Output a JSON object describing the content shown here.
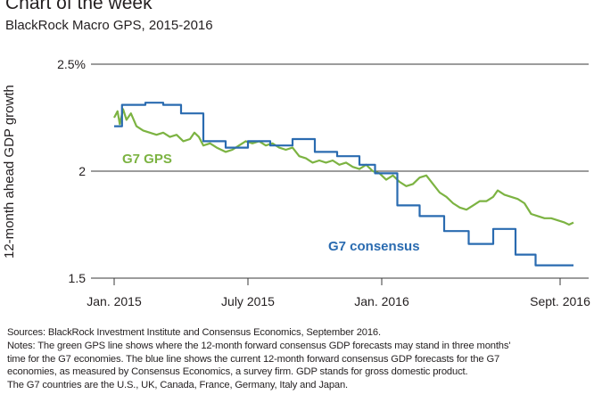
{
  "header": {
    "title": "Chart of the week",
    "subtitle": "BlackRock Macro GPS, 2015-2016"
  },
  "footer": {
    "sources": "Sources: BlackRock Investment Institute and Consensus Economics, September 2016.",
    "notes_line1": "Notes: The green GPS  line shows where the 12-month forward consensus GDP forecasts may stand in three months'",
    "notes_line2": "time for the G7 economies. The blue line shows the current 12-month forward consensus GDP forecasts for the G7",
    "notes_line3": "economies, as measured by Consensus Economics, a survey firm. GDP stands for gross domestic product.",
    "notes_line4": "The G7 countries are the U.S., UK, Canada, France, Germany, Italy and Japan."
  },
  "colors": {
    "gps": "#7cb342",
    "consensus": "#2a6bb0",
    "grid": "#3a3a3a"
  },
  "chart_data": {
    "type": "line",
    "title": "BlackRock Macro GPS, 2015-2016",
    "xlabel": "",
    "ylabel": "12-month ahead GDP growth",
    "ylim": [
      1.5,
      2.5
    ],
    "ytick_labels": [
      "2.5%",
      "2",
      "1.5"
    ],
    "yticks": [
      2.5,
      2.0,
      1.5
    ],
    "xticks": [
      {
        "label": "Jan. 2015",
        "t": 0
      },
      {
        "label": "July 2015",
        "t": 6
      },
      {
        "label": "Jan. 2016",
        "t": 12
      },
      {
        "label": "Sept. 2016",
        "t": 20
      }
    ],
    "x_unit": "months since Jan. 2015",
    "series": [
      {
        "name": "G7 GPS",
        "type": "line",
        "points": [
          [
            0.0,
            2.25
          ],
          [
            0.15,
            2.28
          ],
          [
            0.25,
            2.22
          ],
          [
            0.4,
            2.29
          ],
          [
            0.55,
            2.24
          ],
          [
            0.75,
            2.27
          ],
          [
            1.0,
            2.21
          ],
          [
            1.3,
            2.19
          ],
          [
            1.6,
            2.18
          ],
          [
            1.9,
            2.17
          ],
          [
            2.2,
            2.18
          ],
          [
            2.5,
            2.16
          ],
          [
            2.8,
            2.17
          ],
          [
            3.1,
            2.14
          ],
          [
            3.4,
            2.15
          ],
          [
            3.6,
            2.18
          ],
          [
            3.8,
            2.16
          ],
          [
            4.0,
            2.12
          ],
          [
            4.3,
            2.13
          ],
          [
            4.6,
            2.11
          ],
          [
            5.0,
            2.09
          ],
          [
            5.3,
            2.1
          ],
          [
            5.6,
            2.12
          ],
          [
            5.9,
            2.14
          ],
          [
            6.2,
            2.13
          ],
          [
            6.5,
            2.14
          ],
          [
            6.8,
            2.12
          ],
          [
            7.1,
            2.13
          ],
          [
            7.4,
            2.11
          ],
          [
            7.7,
            2.1
          ],
          [
            8.0,
            2.11
          ],
          [
            8.3,
            2.07
          ],
          [
            8.6,
            2.06
          ],
          [
            8.9,
            2.04
          ],
          [
            9.2,
            2.05
          ],
          [
            9.5,
            2.04
          ],
          [
            9.8,
            2.05
          ],
          [
            10.1,
            2.03
          ],
          [
            10.4,
            2.04
          ],
          [
            10.7,
            2.02
          ],
          [
            11.0,
            2.01
          ],
          [
            11.3,
            2.03
          ],
          [
            11.6,
            2.0
          ],
          [
            11.9,
            1.99
          ],
          [
            12.2,
            1.96
          ],
          [
            12.5,
            1.98
          ],
          [
            12.8,
            1.95
          ],
          [
            13.1,
            1.93
          ],
          [
            13.4,
            1.94
          ],
          [
            13.7,
            1.97
          ],
          [
            14.0,
            1.98
          ],
          [
            14.3,
            1.94
          ],
          [
            14.6,
            1.9
          ],
          [
            14.9,
            1.88
          ],
          [
            15.2,
            1.85
          ],
          [
            15.5,
            1.83
          ],
          [
            15.8,
            1.82
          ],
          [
            16.1,
            1.84
          ],
          [
            16.4,
            1.86
          ],
          [
            16.7,
            1.86
          ],
          [
            17.0,
            1.88
          ],
          [
            17.2,
            1.91
          ],
          [
            17.5,
            1.89
          ],
          [
            17.8,
            1.88
          ],
          [
            18.1,
            1.87
          ],
          [
            18.4,
            1.85
          ],
          [
            18.7,
            1.8
          ],
          [
            19.0,
            1.79
          ],
          [
            19.3,
            1.78
          ],
          [
            19.6,
            1.78
          ],
          [
            19.9,
            1.77
          ],
          [
            20.2,
            1.76
          ],
          [
            20.4,
            1.75
          ],
          [
            20.6,
            1.76
          ]
        ]
      },
      {
        "name": "G7 consensus",
        "type": "step",
        "points": [
          [
            0.0,
            2.21
          ],
          [
            0.35,
            2.31
          ],
          [
            1.4,
            2.32
          ],
          [
            2.2,
            2.31
          ],
          [
            3.0,
            2.27
          ],
          [
            4.0,
            2.14
          ],
          [
            5.0,
            2.11
          ],
          [
            6.0,
            2.14
          ],
          [
            7.0,
            2.12
          ],
          [
            8.0,
            2.15
          ],
          [
            9.0,
            2.09
          ],
          [
            10.0,
            2.07
          ],
          [
            11.0,
            2.03
          ],
          [
            11.7,
            1.99
          ],
          [
            12.7,
            1.84
          ],
          [
            13.7,
            1.79
          ],
          [
            14.8,
            1.72
          ],
          [
            15.9,
            1.66
          ],
          [
            17.0,
            1.73
          ],
          [
            18.0,
            1.61
          ],
          [
            18.9,
            1.56
          ],
          [
            20.6,
            1.56
          ]
        ]
      }
    ],
    "annotations": [
      {
        "text": "G7 GPS",
        "series": "G7 GPS"
      },
      {
        "text": "G7 consensus",
        "series": "G7 consensus"
      }
    ]
  }
}
